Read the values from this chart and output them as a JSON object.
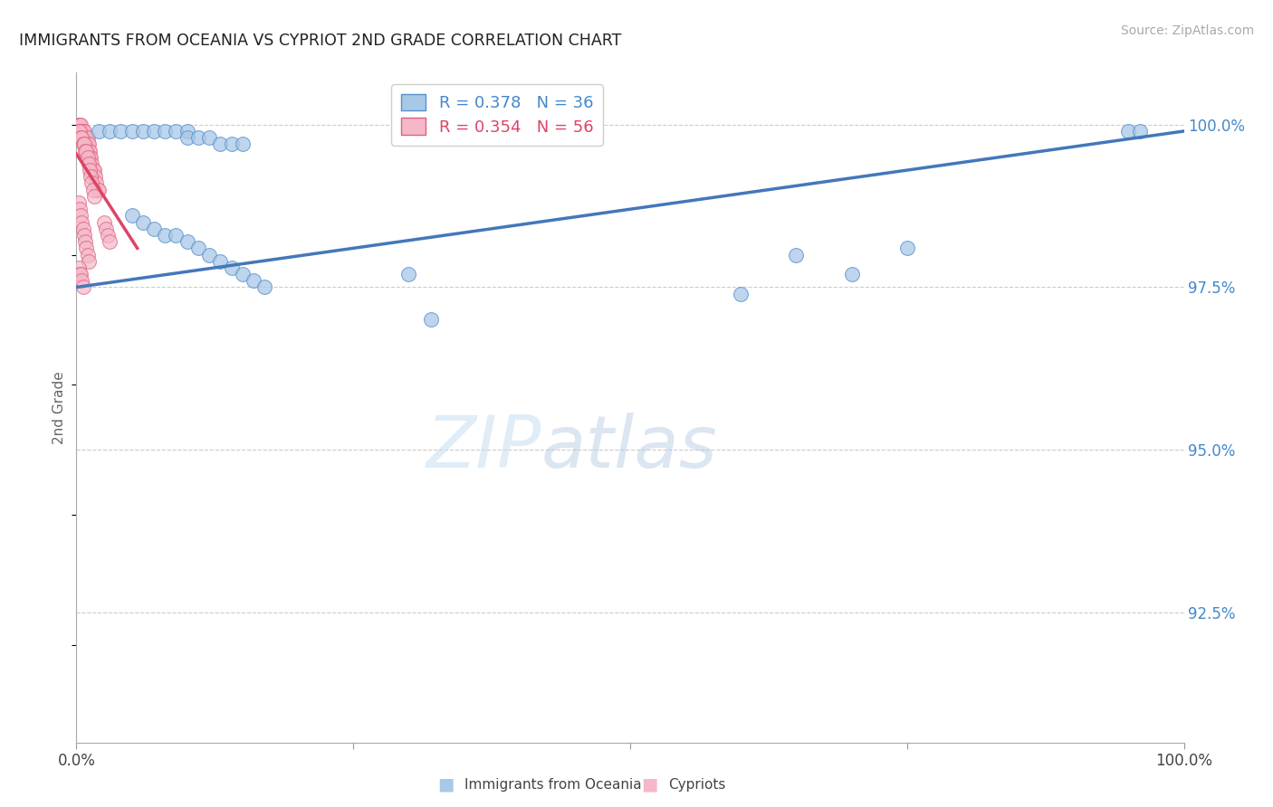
{
  "title": "IMMIGRANTS FROM OCEANIA VS CYPRIOT 2ND GRADE CORRELATION CHART",
  "source": "Source: ZipAtlas.com",
  "ylabel": "2nd Grade",
  "ytick_labels": [
    "92.5%",
    "95.0%",
    "97.5%",
    "100.0%"
  ],
  "ytick_values": [
    0.925,
    0.95,
    0.975,
    1.0
  ],
  "xrange": [
    0.0,
    1.0
  ],
  "yrange": [
    0.905,
    1.008
  ],
  "legend_blue_label": "Immigrants from Oceania",
  "legend_pink_label": "Cypriots",
  "blue_R": 0.378,
  "blue_N": 36,
  "pink_R": 0.354,
  "pink_N": 56,
  "blue_color": "#a8c8e8",
  "pink_color": "#f4b8c8",
  "blue_edge_color": "#5590cc",
  "pink_edge_color": "#e06080",
  "blue_line_color": "#4477bb",
  "pink_line_color": "#dd4466",
  "blue_scatter_x": [
    0.02,
    0.03,
    0.04,
    0.05,
    0.06,
    0.07,
    0.08,
    0.09,
    0.1,
    0.1,
    0.11,
    0.12,
    0.13,
    0.14,
    0.15,
    0.05,
    0.06,
    0.07,
    0.08,
    0.09,
    0.1,
    0.11,
    0.12,
    0.13,
    0.14,
    0.15,
    0.16,
    0.17,
    0.3,
    0.32,
    0.6,
    0.65,
    0.7,
    0.75,
    0.95,
    0.96
  ],
  "blue_scatter_y": [
    0.999,
    0.999,
    0.999,
    0.999,
    0.999,
    0.999,
    0.999,
    0.999,
    0.999,
    0.998,
    0.998,
    0.998,
    0.997,
    0.997,
    0.997,
    0.986,
    0.985,
    0.984,
    0.983,
    0.983,
    0.982,
    0.981,
    0.98,
    0.979,
    0.978,
    0.977,
    0.976,
    0.975,
    0.977,
    0.97,
    0.974,
    0.98,
    0.977,
    0.981,
    0.999,
    0.999
  ],
  "pink_scatter_x": [
    0.002,
    0.003,
    0.004,
    0.005,
    0.006,
    0.007,
    0.008,
    0.009,
    0.01,
    0.01,
    0.011,
    0.011,
    0.012,
    0.012,
    0.013,
    0.014,
    0.015,
    0.016,
    0.017,
    0.018,
    0.019,
    0.02,
    0.002,
    0.003,
    0.004,
    0.005,
    0.006,
    0.007,
    0.008,
    0.009,
    0.01,
    0.011,
    0.012,
    0.013,
    0.014,
    0.015,
    0.016,
    0.002,
    0.003,
    0.004,
    0.005,
    0.006,
    0.007,
    0.008,
    0.009,
    0.01,
    0.011,
    0.002,
    0.003,
    0.004,
    0.005,
    0.006,
    0.025,
    0.027,
    0.028,
    0.03
  ],
  "pink_scatter_y": [
    1.0,
    1.0,
    1.0,
    0.999,
    0.999,
    0.999,
    0.998,
    0.998,
    0.998,
    0.997,
    0.997,
    0.996,
    0.996,
    0.995,
    0.995,
    0.994,
    0.993,
    0.993,
    0.992,
    0.991,
    0.99,
    0.99,
    0.999,
    0.999,
    0.998,
    0.998,
    0.997,
    0.997,
    0.996,
    0.996,
    0.995,
    0.994,
    0.993,
    0.992,
    0.991,
    0.99,
    0.989,
    0.988,
    0.987,
    0.986,
    0.985,
    0.984,
    0.983,
    0.982,
    0.981,
    0.98,
    0.979,
    0.978,
    0.977,
    0.977,
    0.976,
    0.975,
    0.985,
    0.984,
    0.983,
    0.982
  ],
  "blue_trend_x": [
    0.0,
    1.0
  ],
  "blue_trend_y": [
    0.975,
    0.999
  ],
  "pink_trend_x": [
    0.0,
    0.055
  ],
  "pink_trend_y": [
    0.9955,
    0.981
  ],
  "watermark_zip": "ZIP",
  "watermark_atlas": "atlas",
  "background_color": "#ffffff",
  "grid_color": "#cccccc"
}
